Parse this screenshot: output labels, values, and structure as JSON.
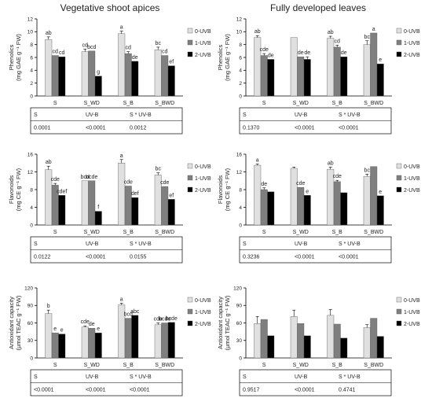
{
  "column_titles": [
    "Vegetative shoot apices",
    "Fully developed leaves"
  ],
  "colors": {
    "0-UVB": "#e0e0e0",
    "1-UVB": "#7f7f7f",
    "2-UVB": "#000000"
  },
  "chart_data": [
    {
      "type": "bar",
      "ylabel": "Phenolics\n(mg GAE g⁻¹ FW)",
      "ylim": [
        0,
        12
      ],
      "yticks": [
        0,
        2,
        4,
        6,
        8,
        10,
        12
      ],
      "categories": [
        "S",
        "S_WD",
        "S_B",
        "S_BWD"
      ],
      "series": [
        {
          "name": "0-UVB",
          "values": [
            8.8,
            6.9,
            9.7,
            7.2
          ],
          "errors": [
            0.4,
            0.4,
            0.4,
            0.4
          ],
          "letters": [
            "ab",
            "cd",
            "a",
            "bc"
          ]
        },
        {
          "name": "1-UVB",
          "values": [
            6.3,
            7.0,
            6.6,
            6.3
          ],
          "errors": [
            0,
            0,
            0.3,
            0
          ],
          "letters": [
            "cd",
            "bcd",
            "cd",
            "cd"
          ]
        },
        {
          "name": "2-UVB",
          "values": [
            6.1,
            3.1,
            5.4,
            4.7
          ],
          "errors": [
            0,
            0,
            0,
            0
          ],
          "letters": [
            "cd",
            "g",
            "de",
            "ef"
          ]
        }
      ],
      "stats": {
        "headers": [
          "S",
          "UV-B",
          "S * UV-B"
        ],
        "values": [
          "0.0001",
          "<0.0001",
          "0.0012"
        ]
      }
    },
    {
      "type": "bar",
      "ylabel": "Phenolics\n(mg GAE g⁻¹ FW)",
      "ylim": [
        0,
        12
      ],
      "yticks": [
        0,
        2,
        4,
        6,
        8,
        10,
        12
      ],
      "categories": [
        "S",
        "S_WD",
        "S_B",
        "S_BWD"
      ],
      "series": [
        {
          "name": "0-UVB",
          "values": [
            9.1,
            9.1,
            9.0,
            8.0
          ],
          "errors": [
            0.3,
            0,
            0.3,
            0.6
          ],
          "letters": [
            "ab",
            "",
            "ab",
            "bc"
          ]
        },
        {
          "name": "1-UVB",
          "values": [
            6.3,
            6.1,
            7.6,
            9.8
          ],
          "errors": [
            0.3,
            0,
            0.3,
            0
          ],
          "letters": [
            "cde",
            "de",
            "cd",
            "a"
          ]
        },
        {
          "name": "2-UVB",
          "values": [
            5.7,
            5.7,
            6.1,
            5.0
          ],
          "errors": [
            0,
            0.4,
            0,
            0
          ],
          "letters": [
            "de",
            "de",
            "de",
            "e"
          ]
        }
      ],
      "stats": {
        "headers": [
          "S",
          "UV-B",
          "S * UV-B"
        ],
        "values": [
          "0.1370",
          "<0.0001",
          "<0.0001"
        ]
      }
    },
    {
      "type": "bar",
      "ylabel": "Flavonoids\n(mg CE g⁻¹ FW)",
      "ylim": [
        0,
        16
      ],
      "yticks": [
        0,
        4,
        8,
        12,
        16
      ],
      "categories": [
        "S",
        "S_WD",
        "S_B",
        "S_BWD"
      ],
      "series": [
        {
          "name": "0-UVB",
          "values": [
            12.5,
            10.0,
            14.0,
            11.3
          ],
          "errors": [
            0.8,
            0,
            0.8,
            0.5
          ],
          "letters": [
            "ab",
            "bcd",
            "a",
            "bc"
          ]
        },
        {
          "name": "1-UVB",
          "values": [
            9.0,
            10.0,
            8.8,
            8.7
          ],
          "errors": [
            0.4,
            0,
            0,
            0
          ],
          "letters": [
            "cde",
            "bcde",
            "cde",
            "cde"
          ]
        },
        {
          "name": "2-UVB",
          "values": [
            6.7,
            3.1,
            6.2,
            5.8
          ],
          "errors": [
            0,
            0,
            0,
            0
          ],
          "letters": [
            "cdef",
            "f",
            "def",
            "ef"
          ]
        }
      ],
      "stats": {
        "headers": [
          "S",
          "UV-B",
          "S * UV-B"
        ],
        "values": [
          "0.0122",
          "<0.0001",
          "0.0155"
        ]
      }
    },
    {
      "type": "bar",
      "ylabel": "Flavonoids\n(mg CE g⁻¹ FW)",
      "ylim": [
        0,
        16
      ],
      "yticks": [
        0,
        4,
        8,
        12,
        16
      ],
      "categories": [
        "S",
        "S_WD",
        "S_B",
        "S_BWD"
      ],
      "series": [
        {
          "name": "0-UVB",
          "values": [
            13.5,
            12.8,
            12.6,
            11.0
          ],
          "errors": [
            0.3,
            0.3,
            0.5,
            0.5
          ],
          "letters": [
            "a",
            "",
            "ab",
            "bc"
          ]
        },
        {
          "name": "1-UVB",
          "values": [
            8.0,
            8.5,
            9.8,
            13.2
          ],
          "errors": [
            0.4,
            0,
            0.3,
            0
          ],
          "letters": [
            "de",
            "cde",
            "cde",
            ""
          ]
        },
        {
          "name": "2-UVB",
          "values": [
            7.5,
            6.7,
            7.3,
            6.6
          ],
          "errors": [
            0,
            0,
            0,
            0
          ],
          "letters": [
            "",
            "e",
            "",
            "e"
          ]
        }
      ],
      "stats": {
        "headers": [
          "S",
          "UV-B",
          "S * UV-B"
        ],
        "values": [
          "0.3236",
          "<0.0001",
          "<0.0001"
        ]
      }
    },
    {
      "type": "bar",
      "ylabel": "Antioxidant capacity\n(μmol TEAC g⁻¹ FW)",
      "ylim": [
        0,
        120
      ],
      "yticks": [
        0,
        30,
        60,
        90,
        120
      ],
      "categories": [
        "S",
        "S_WD",
        "S_B",
        "S_BWD"
      ],
      "series": [
        {
          "name": "0-UVB",
          "values": [
            76,
            53,
            91,
            57
          ],
          "errors": [
            6,
            2,
            3,
            3
          ],
          "letters": [
            "b",
            "cde",
            "a",
            "cde"
          ]
        },
        {
          "name": "1-UVB",
          "values": [
            43,
            51,
            68,
            60
          ],
          "errors": [
            0,
            0,
            0,
            0
          ],
          "letters": [
            "e",
            "de",
            "bcd",
            "bcde"
          ]
        },
        {
          "name": "2-UVB",
          "values": [
            41,
            43,
            73,
            61
          ],
          "errors": [
            0,
            0,
            0,
            0
          ],
          "letters": [
            "e",
            "e",
            "abc",
            "bcde"
          ]
        }
      ],
      "stats": {
        "headers": [
          "S",
          "UV-B",
          "S * UV-B"
        ],
        "values": [
          "<0.0001",
          "<0.0001",
          "<0.0001"
        ]
      }
    },
    {
      "type": "bar",
      "ylabel": "Antioxidant capacity\n(μmol TEAC g⁻¹ FW)",
      "ylim": [
        0,
        120
      ],
      "yticks": [
        0,
        30,
        60,
        90,
        120
      ],
      "categories": [
        "S",
        "S_WD",
        "S_B",
        "S_BWD"
      ],
      "series": [
        {
          "name": "0-UVB",
          "values": [
            59,
            71,
            73,
            52
          ],
          "errors": [
            12,
            11,
            10,
            5
          ],
          "letters": [
            "",
            "",
            "",
            ""
          ]
        },
        {
          "name": "1-UVB",
          "values": [
            66,
            59,
            58,
            68
          ],
          "errors": [
            0,
            0,
            0,
            0
          ],
          "letters": [
            "",
            "",
            "",
            ""
          ]
        },
        {
          "name": "2-UVB",
          "values": [
            38,
            38,
            34,
            37
          ],
          "errors": [
            0,
            0,
            0,
            0
          ],
          "letters": [
            "",
            "",
            "",
            ""
          ]
        }
      ],
      "stats": {
        "headers": [
          "S",
          "UV-B",
          "S * UV-B"
        ],
        "values": [
          "0.9517",
          "<0.0001",
          "0.4741"
        ]
      }
    }
  ]
}
